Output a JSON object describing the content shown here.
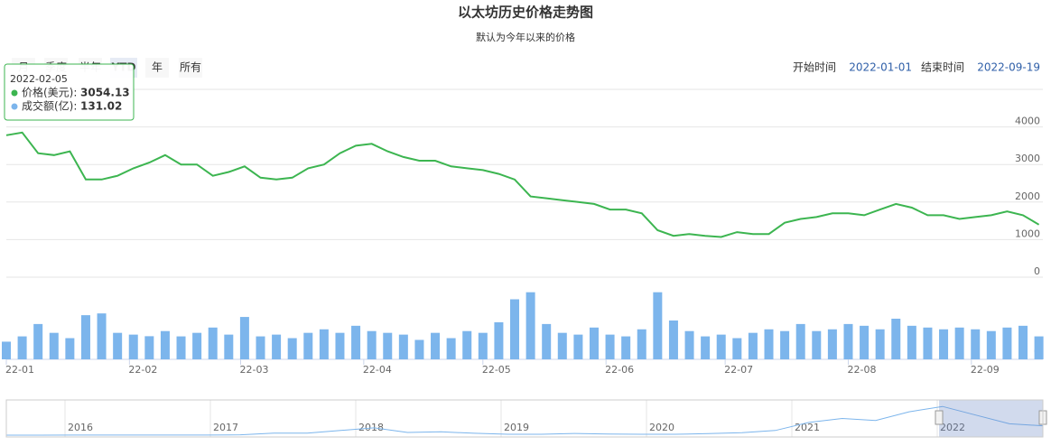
{
  "header": {
    "title": "以太坊历史价格走势图",
    "subtitle": "默认为今年以来的价格"
  },
  "range_buttons": [
    "月",
    "季度",
    "半年",
    "YTD",
    "年",
    "所有"
  ],
  "active_button": 3,
  "date_range": {
    "start_label": "开始时间",
    "start": "2022-01-01",
    "end_label": "结束时间",
    "end": "2022-09-19"
  },
  "tooltip": {
    "date": "2022-02-05",
    "items": [
      {
        "name": "价格(美元):",
        "value": 3054.13,
        "color": "#3cb550"
      },
      {
        "name": "成交额(亿):",
        "value": 131.02,
        "color": "#7cb5ec"
      }
    ]
  },
  "chart_data": {
    "type": "line",
    "x": [
      "2022-01-01",
      "2022-01-05",
      "2022-01-09",
      "2022-01-13",
      "2022-01-17",
      "2022-01-21",
      "2022-01-25",
      "2022-01-29",
      "2022-02-02",
      "2022-02-06",
      "2022-02-10",
      "2022-02-14",
      "2022-02-18",
      "2022-02-22",
      "2022-02-26",
      "2022-03-02",
      "2022-03-06",
      "2022-03-10",
      "2022-03-14",
      "2022-03-18",
      "2022-03-22",
      "2022-03-26",
      "2022-03-30",
      "2022-04-03",
      "2022-04-07",
      "2022-04-11",
      "2022-04-15",
      "2022-04-19",
      "2022-04-23",
      "2022-04-27",
      "2022-05-01",
      "2022-05-05",
      "2022-05-09",
      "2022-05-13",
      "2022-05-17",
      "2022-05-21",
      "2022-05-25",
      "2022-05-29",
      "2022-06-02",
      "2022-06-06",
      "2022-06-10",
      "2022-06-14",
      "2022-06-18",
      "2022-06-22",
      "2022-06-26",
      "2022-06-30",
      "2022-07-04",
      "2022-07-08",
      "2022-07-12",
      "2022-07-16",
      "2022-07-20",
      "2022-07-24",
      "2022-07-28",
      "2022-08-01",
      "2022-08-05",
      "2022-08-09",
      "2022-08-13",
      "2022-08-17",
      "2022-08-21",
      "2022-08-25",
      "2022-08-29",
      "2022-09-02",
      "2022-09-06",
      "2022-09-10",
      "2022-09-14",
      "2022-09-18"
    ],
    "xlim": [
      "2022-01-01",
      "2022-09-19"
    ],
    "xticks": [
      {
        "value": "2022-01-01",
        "label": "22-01"
      },
      {
        "value": "2022-02-01",
        "label": "22-02"
      },
      {
        "value": "2022-03-01",
        "label": "22-03"
      },
      {
        "value": "2022-04-01",
        "label": "22-04"
      },
      {
        "value": "2022-05-01",
        "label": "22-05"
      },
      {
        "value": "2022-06-01",
        "label": "22-06"
      },
      {
        "value": "2022-07-01",
        "label": "22-07"
      },
      {
        "value": "2022-08-01",
        "label": "22-08"
      },
      {
        "value": "2022-09-01",
        "label": "22-09"
      }
    ],
    "ylim": [
      0,
      5000
    ],
    "yticks": [
      0,
      1000,
      2000,
      3000,
      4000
    ],
    "grid": true,
    "y2lim": [
      0,
      450
    ],
    "y2ticks": [
      0
    ],
    "series": [
      {
        "color": "#3cb550",
        "values": [
          3780,
          3850,
          3300,
          3250,
          3350,
          2600,
          2600,
          2700,
          2900,
          3050,
          3250,
          3000,
          3000,
          2700,
          2800,
          2950,
          2650,
          2600,
          2650,
          2900,
          3000,
          3300,
          3500,
          3550,
          3350,
          3200,
          3100,
          3100,
          2950,
          2900,
          2850,
          2750,
          2600,
          2150,
          2100,
          2050,
          2000,
          1950,
          1800,
          1800,
          1700,
          1250,
          1100,
          1150,
          1100,
          1070,
          1200,
          1150,
          1150,
          1450,
          1550,
          1600,
          1700,
          1700,
          1650,
          1800,
          1950,
          1850,
          1650,
          1650,
          1550,
          1600,
          1650,
          1750,
          1650,
          1400
        ]
      },
      {
        "type": "bar",
        "axis": "y2",
        "color": "#7cb5ec",
        "values": [
          100,
          130,
          200,
          150,
          120,
          250,
          260,
          150,
          140,
          131,
          160,
          130,
          150,
          180,
          140,
          240,
          130,
          140,
          120,
          150,
          170,
          150,
          190,
          160,
          150,
          140,
          110,
          150,
          120,
          160,
          150,
          210,
          340,
          380,
          200,
          150,
          140,
          180,
          140,
          130,
          170,
          380,
          220,
          160,
          130,
          140,
          120,
          150,
          170,
          160,
          200,
          160,
          170,
          200,
          190,
          170,
          230,
          190,
          180,
          170,
          180,
          170,
          160,
          180,
          190,
          130
        ]
      }
    ]
  },
  "navigator": {
    "labels": [
      "2016",
      "2017",
      "2018",
      "2019",
      "2020",
      "2021",
      "2022"
    ],
    "ylim": [
      0,
      5000
    ],
    "color": "#7cb5ec",
    "values": [
      1,
      1,
      10,
      12,
      10,
      11,
      10,
      50,
      300,
      300,
      700,
      1100,
      400,
      500,
      280,
      130,
      140,
      250,
      180,
      130,
      130,
      230,
      370,
      700,
      1900,
      2500,
      2200,
      3500,
      4300,
      3000,
      1700,
      1400
    ]
  }
}
